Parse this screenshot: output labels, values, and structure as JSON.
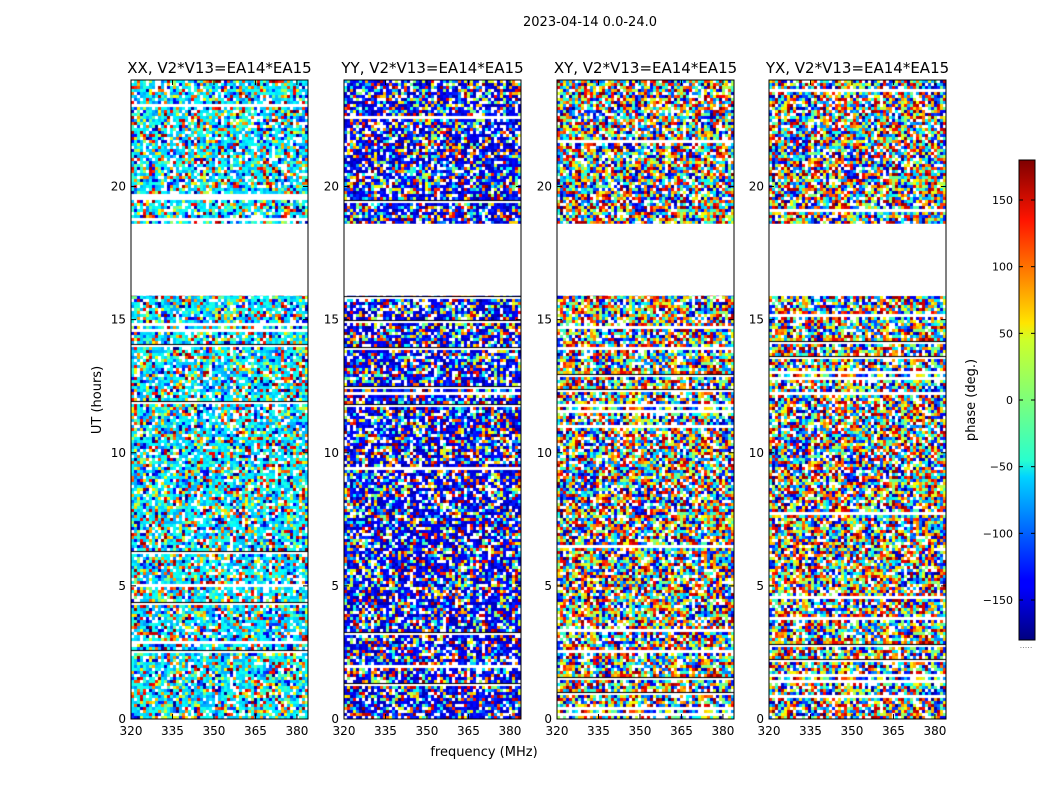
{
  "figure_title": "2023-04-14 0.0-24.0",
  "chart_data": {
    "type": "heatmap",
    "xlabel": "frequency (MHz)",
    "ylabel": "UT (hours)",
    "xlim": [
      320,
      384
    ],
    "ylim": [
      0,
      24
    ],
    "x_ticks": [
      320,
      335,
      350,
      365,
      380
    ],
    "y_ticks": [
      0,
      5,
      10,
      15,
      20
    ],
    "panels": [
      {
        "title": "XX, V2*V13=EA14*EA15",
        "polarization": "XX"
      },
      {
        "title": "YY, V2*V13=EA14*EA15",
        "polarization": "YY"
      },
      {
        "title": "XY, V2*V13=EA14*EA15",
        "polarization": "XY"
      },
      {
        "title": "YX, V2*V13=EA14*EA15",
        "polarization": "YX"
      }
    ],
    "no_data_ranges_hours": [
      [
        18.6,
        15.9
      ]
    ],
    "colorbar": {
      "label": "phase (deg.)",
      "range": [
        -180,
        180
      ],
      "ticks": [
        150,
        100,
        50,
        0,
        -50,
        -100,
        -150
      ],
      "tick_labels": [
        "150",
        "100",
        "50",
        "0",
        "−50",
        "−100",
        "−150"
      ],
      "colormap": "jet"
    }
  }
}
